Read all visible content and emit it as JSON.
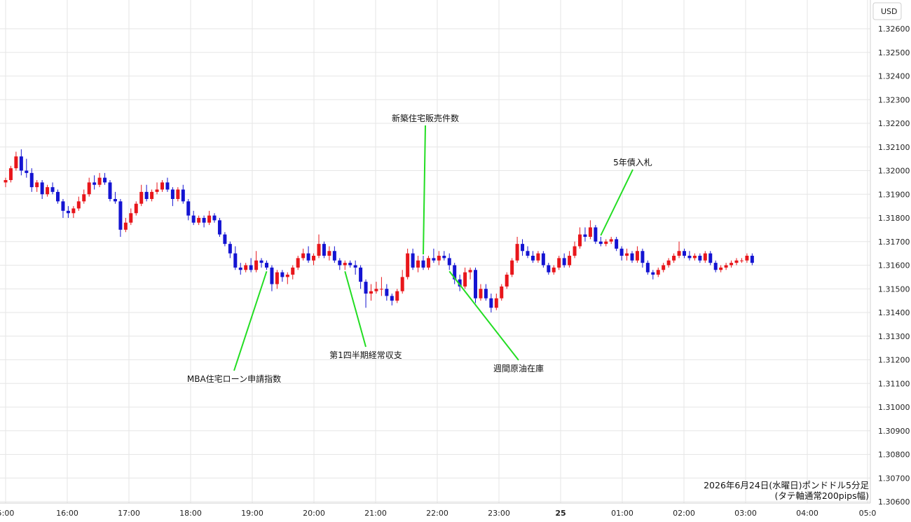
{
  "chart_data": {
    "type": "candlestick",
    "unit_label": "USD",
    "ylim": [
      1.306,
      1.327
    ],
    "y_ticks": [
      "1.32600",
      "1.32500",
      "1.32400",
      "1.32300",
      "1.32200",
      "1.32100",
      "1.32000",
      "1.31900",
      "1.31800",
      "1.31700",
      "1.31600",
      "1.31500",
      "1.31400",
      "1.31300",
      "1.31200",
      "1.31100",
      "1.31000",
      "1.30900",
      "1.30800",
      "1.30700",
      "1.30600"
    ],
    "x_ticks": [
      "5:00",
      "16:00",
      "17:00",
      "18:00",
      "19:00",
      "20:00",
      "21:00",
      "22:00",
      "23:00",
      "25",
      "01:00",
      "02:00",
      "03:00",
      "04:00",
      "05:0"
    ],
    "grid": true,
    "colors": {
      "up": "#e8161b",
      "down": "#1414d2",
      "annotation_line": "#22dd22",
      "grid": "#e6e6e6"
    },
    "candles": [
      [
        1.3195,
        1.3197,
        1.3193,
        1.3196
      ],
      [
        1.3196,
        1.3202,
        1.3195,
        1.3201
      ],
      [
        1.3201,
        1.3208,
        1.32,
        1.3206
      ],
      [
        1.3206,
        1.3209,
        1.3198,
        1.32
      ],
      [
        1.32,
        1.3205,
        1.3197,
        1.3199
      ],
      [
        1.3199,
        1.3201,
        1.3191,
        1.3193
      ],
      [
        1.3193,
        1.3196,
        1.3191,
        1.3195
      ],
      [
        1.3195,
        1.3196,
        1.3188,
        1.319
      ],
      [
        1.319,
        1.3194,
        1.3189,
        1.3193
      ],
      [
        1.3193,
        1.3195,
        1.319,
        1.3191
      ],
      [
        1.3191,
        1.3192,
        1.3186,
        1.3187
      ],
      [
        1.3187,
        1.3188,
        1.318,
        1.3183
      ],
      [
        1.3183,
        1.3185,
        1.318,
        1.3182
      ],
      [
        1.3182,
        1.3185,
        1.318,
        1.3184
      ],
      [
        1.3184,
        1.3189,
        1.3183,
        1.3187
      ],
      [
        1.3187,
        1.3192,
        1.3186,
        1.319
      ],
      [
        1.319,
        1.3197,
        1.3189,
        1.3195
      ],
      [
        1.3195,
        1.3198,
        1.3192,
        1.3194
      ],
      [
        1.3194,
        1.3199,
        1.3193,
        1.3197
      ],
      [
        1.3197,
        1.3199,
        1.3194,
        1.3195
      ],
      [
        1.3195,
        1.3196,
        1.3187,
        1.3188
      ],
      [
        1.3188,
        1.3191,
        1.3186,
        1.3187
      ],
      [
        1.3187,
        1.3188,
        1.3172,
        1.3175
      ],
      [
        1.3175,
        1.318,
        1.3174,
        1.3178
      ],
      [
        1.3178,
        1.3184,
        1.3177,
        1.3182
      ],
      [
        1.3182,
        1.3187,
        1.3181,
        1.3186
      ],
      [
        1.3186,
        1.3194,
        1.3185,
        1.3191
      ],
      [
        1.3191,
        1.3194,
        1.3187,
        1.3188
      ],
      [
        1.3188,
        1.3192,
        1.3187,
        1.3191
      ],
      [
        1.3191,
        1.3195,
        1.319,
        1.3192
      ],
      [
        1.3192,
        1.3196,
        1.3191,
        1.3195
      ],
      [
        1.3195,
        1.3197,
        1.3191,
        1.3192
      ],
      [
        1.3192,
        1.3193,
        1.3185,
        1.3188
      ],
      [
        1.3188,
        1.3193,
        1.3187,
        1.3192
      ],
      [
        1.3192,
        1.3194,
        1.3186,
        1.3187
      ],
      [
        1.3187,
        1.3188,
        1.3179,
        1.3181
      ],
      [
        1.3181,
        1.3183,
        1.3177,
        1.3178
      ],
      [
        1.3178,
        1.3181,
        1.3177,
        1.318
      ],
      [
        1.318,
        1.3181,
        1.3176,
        1.3178
      ],
      [
        1.3178,
        1.3183,
        1.3177,
        1.3181
      ],
      [
        1.3181,
        1.3182,
        1.3178,
        1.3179
      ],
      [
        1.3179,
        1.318,
        1.3172,
        1.3173
      ],
      [
        1.3173,
        1.3174,
        1.3168,
        1.3169
      ],
      [
        1.3169,
        1.317,
        1.3163,
        1.3165
      ],
      [
        1.3165,
        1.3168,
        1.3158,
        1.3159
      ],
      [
        1.3159,
        1.3161,
        1.3156,
        1.3158
      ],
      [
        1.3158,
        1.3161,
        1.3157,
        1.316
      ],
      [
        1.316,
        1.3163,
        1.3157,
        1.3158
      ],
      [
        1.3158,
        1.3166,
        1.3157,
        1.3162
      ],
      [
        1.3162,
        1.3163,
        1.3159,
        1.3161
      ],
      [
        1.3161,
        1.3162,
        1.3158,
        1.3159
      ],
      [
        1.3159,
        1.316,
        1.3149,
        1.3152
      ],
      [
        1.3152,
        1.3158,
        1.315,
        1.3157
      ],
      [
        1.3157,
        1.3158,
        1.3153,
        1.3155
      ],
      [
        1.3155,
        1.3157,
        1.3152,
        1.3156
      ],
      [
        1.3156,
        1.316,
        1.3154,
        1.3159
      ],
      [
        1.3159,
        1.3164,
        1.3158,
        1.3163
      ],
      [
        1.3163,
        1.3167,
        1.3162,
        1.3165
      ],
      [
        1.3165,
        1.3168,
        1.3161,
        1.3162
      ],
      [
        1.3162,
        1.3165,
        1.316,
        1.3164
      ],
      [
        1.3164,
        1.3173,
        1.3163,
        1.3169
      ],
      [
        1.3169,
        1.317,
        1.3163,
        1.3164
      ],
      [
        1.3164,
        1.3168,
        1.3162,
        1.3166
      ],
      [
        1.3166,
        1.3168,
        1.3161,
        1.3162
      ],
      [
        1.3162,
        1.3163,
        1.3158,
        1.316
      ],
      [
        1.316,
        1.3162,
        1.3158,
        1.3161
      ],
      [
        1.3161,
        1.3162,
        1.3159,
        1.316
      ],
      [
        1.316,
        1.3162,
        1.3156,
        1.3159
      ],
      [
        1.3159,
        1.316,
        1.315,
        1.3153
      ],
      [
        1.3153,
        1.3154,
        1.3142,
        1.3148
      ],
      [
        1.3148,
        1.3152,
        1.3145,
        1.3149
      ],
      [
        1.3149,
        1.3153,
        1.3148,
        1.315
      ],
      [
        1.315,
        1.3155,
        1.3147,
        1.315
      ],
      [
        1.315,
        1.3152,
        1.3145,
        1.3147
      ],
      [
        1.3147,
        1.3148,
        1.3143,
        1.3145
      ],
      [
        1.3145,
        1.315,
        1.3144,
        1.3149
      ],
      [
        1.3149,
        1.3158,
        1.3148,
        1.3155
      ],
      [
        1.3155,
        1.3167,
        1.3154,
        1.3165
      ],
      [
        1.3165,
        1.3167,
        1.3158,
        1.3159
      ],
      [
        1.3159,
        1.3164,
        1.3157,
        1.3162
      ],
      [
        1.3162,
        1.3164,
        1.3158,
        1.3159
      ],
      [
        1.3159,
        1.3164,
        1.3158,
        1.3163
      ],
      [
        1.3163,
        1.3167,
        1.3161,
        1.3162
      ],
      [
        1.3162,
        1.3166,
        1.316,
        1.3164
      ],
      [
        1.3164,
        1.3166,
        1.3162,
        1.3163
      ],
      [
        1.3163,
        1.3165,
        1.3158,
        1.316
      ],
      [
        1.316,
        1.3161,
        1.3152,
        1.3154
      ],
      [
        1.3154,
        1.3156,
        1.3149,
        1.3151
      ],
      [
        1.3151,
        1.3159,
        1.315,
        1.3157
      ],
      [
        1.3157,
        1.3159,
        1.3154,
        1.3158
      ],
      [
        1.3158,
        1.3159,
        1.3144,
        1.3146
      ],
      [
        1.3146,
        1.3152,
        1.3145,
        1.315
      ],
      [
        1.315,
        1.3152,
        1.3145,
        1.3146
      ],
      [
        1.3146,
        1.3148,
        1.314,
        1.3142
      ],
      [
        1.3142,
        1.3148,
        1.3141,
        1.3146
      ],
      [
        1.3146,
        1.3152,
        1.3145,
        1.3151
      ],
      [
        1.3151,
        1.3157,
        1.315,
        1.3156
      ],
      [
        1.3156,
        1.3163,
        1.3155,
        1.3162
      ],
      [
        1.3162,
        1.3172,
        1.3161,
        1.3169
      ],
      [
        1.3169,
        1.3171,
        1.3164,
        1.3166
      ],
      [
        1.3166,
        1.3168,
        1.3163,
        1.3164
      ],
      [
        1.3164,
        1.3166,
        1.3161,
        1.3162
      ],
      [
        1.3162,
        1.3166,
        1.3161,
        1.3165
      ],
      [
        1.3165,
        1.3166,
        1.3159,
        1.316
      ],
      [
        1.316,
        1.3161,
        1.3156,
        1.3157
      ],
      [
        1.3157,
        1.316,
        1.3156,
        1.3159
      ],
      [
        1.3159,
        1.3164,
        1.3158,
        1.3163
      ],
      [
        1.3163,
        1.3165,
        1.3159,
        1.316
      ],
      [
        1.316,
        1.3166,
        1.3159,
        1.3164
      ],
      [
        1.3164,
        1.317,
        1.3163,
        1.3168
      ],
      [
        1.3168,
        1.3176,
        1.3167,
        1.3173
      ],
      [
        1.3173,
        1.3176,
        1.317,
        1.3172
      ],
      [
        1.3172,
        1.3179,
        1.3171,
        1.3176
      ],
      [
        1.3176,
        1.3177,
        1.3169,
        1.317
      ],
      [
        1.317,
        1.3172,
        1.3168,
        1.3169
      ],
      [
        1.3169,
        1.3171,
        1.3168,
        1.317
      ],
      [
        1.317,
        1.3172,
        1.3169,
        1.3171
      ],
      [
        1.3171,
        1.3172,
        1.3166,
        1.3167
      ],
      [
        1.3167,
        1.3168,
        1.3162,
        1.3164
      ],
      [
        1.3164,
        1.3167,
        1.3162,
        1.3165
      ],
      [
        1.3165,
        1.3166,
        1.3161,
        1.3162
      ],
      [
        1.3162,
        1.3168,
        1.3161,
        1.3166
      ],
      [
        1.3166,
        1.3167,
        1.3159,
        1.3161
      ],
      [
        1.3161,
        1.3162,
        1.3156,
        1.3157
      ],
      [
        1.3157,
        1.3158,
        1.3154,
        1.3156
      ],
      [
        1.3156,
        1.3159,
        1.3155,
        1.3158
      ],
      [
        1.3158,
        1.3161,
        1.3157,
        1.316
      ],
      [
        1.316,
        1.3163,
        1.3159,
        1.3162
      ],
      [
        1.3162,
        1.3165,
        1.3161,
        1.3164
      ],
      [
        1.3164,
        1.317,
        1.3163,
        1.3166
      ],
      [
        1.3166,
        1.3167,
        1.3163,
        1.3164
      ],
      [
        1.3164,
        1.3166,
        1.3162,
        1.3163
      ],
      [
        1.3163,
        1.3165,
        1.3162,
        1.3164
      ],
      [
        1.3164,
        1.3165,
        1.3161,
        1.3162
      ],
      [
        1.3162,
        1.3166,
        1.3161,
        1.3165
      ],
      [
        1.3165,
        1.3166,
        1.316,
        1.3161
      ],
      [
        1.3161,
        1.3162,
        1.3157,
        1.3158
      ],
      [
        1.3158,
        1.316,
        1.3157,
        1.3159
      ],
      [
        1.3159,
        1.3161,
        1.3158,
        1.316
      ],
      [
        1.316,
        1.3162,
        1.3159,
        1.3161
      ],
      [
        1.3161,
        1.3163,
        1.316,
        1.3162
      ],
      [
        1.3162,
        1.3163,
        1.3161,
        1.3162
      ],
      [
        1.3162,
        1.3165,
        1.3161,
        1.3164
      ],
      [
        1.3164,
        1.3165,
        1.316,
        1.3161
      ]
    ],
    "annotations": [
      {
        "label": "MBA住宅ローン申請指数",
        "candle": 50
      },
      {
        "label": "第1四半期経常収支",
        "candle": 65
      },
      {
        "label": "新築住宅販売件数",
        "candle": 80
      },
      {
        "label": "週間原油在庫",
        "candle": 85
      },
      {
        "label": "5年債入札",
        "candle": 114
      }
    ]
  },
  "footnote": {
    "line1": "2026年6月24日(水曜日)ポンドドル5分足",
    "line2": "(タテ軸通常200pips幅)"
  }
}
